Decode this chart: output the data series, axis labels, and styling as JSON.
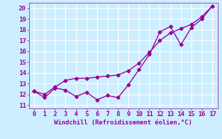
{
  "xlabel": "Windchill (Refroidissement éolien,°C)",
  "background_color": "#cceeff",
  "grid_color": "#ffffff",
  "line_color": "#990099",
  "xlim": [
    -0.5,
    17.5
  ],
  "ylim": [
    10.7,
    20.5
  ],
  "xticks": [
    0,
    1,
    2,
    3,
    4,
    5,
    6,
    7,
    8,
    9,
    10,
    11,
    12,
    13,
    14,
    15,
    16,
    17
  ],
  "yticks": [
    11,
    12,
    13,
    14,
    15,
    16,
    17,
    18,
    19,
    20
  ],
  "line1_x": [
    0,
    1,
    2,
    3,
    4,
    5,
    6,
    7,
    8,
    9,
    10,
    11,
    12,
    13,
    14,
    15,
    16,
    17
  ],
  "line1_y": [
    12.3,
    11.7,
    12.6,
    12.4,
    11.8,
    12.2,
    11.5,
    11.9,
    11.7,
    12.9,
    14.3,
    15.7,
    17.8,
    18.3,
    16.6,
    18.2,
    19.0,
    20.2
  ],
  "line2_x": [
    0,
    1,
    2,
    3,
    4,
    5,
    6,
    7,
    8,
    9,
    10,
    11,
    12,
    13,
    14,
    15,
    16,
    17
  ],
  "line2_y": [
    12.3,
    12.0,
    12.7,
    13.3,
    13.5,
    13.5,
    13.6,
    13.7,
    13.8,
    14.2,
    14.9,
    15.9,
    17.0,
    17.7,
    18.1,
    18.5,
    19.2,
    20.2
  ],
  "xlabel_fontsize": 6.5,
  "tick_fontsize": 6.5,
  "markersize": 2.5,
  "linewidth": 1.0
}
